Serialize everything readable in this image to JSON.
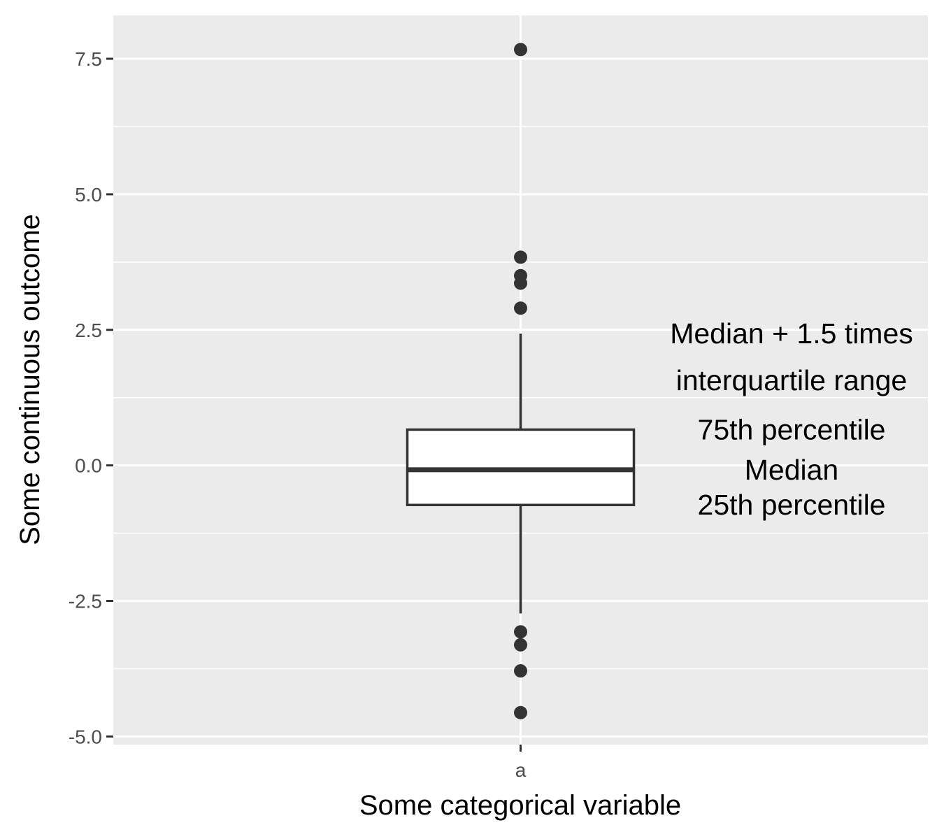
{
  "chart_data": {
    "type": "boxplot",
    "xlabel": "Some categorical variable",
    "ylabel": "Some continuous outcome",
    "categories": [
      "a"
    ],
    "ylim": [
      -5.15,
      8.3
    ],
    "y_ticks": [
      -5.0,
      -2.5,
      0.0,
      2.5,
      5.0,
      7.5
    ],
    "y_tick_labels": [
      "-5.0",
      "-2.5",
      "0.0",
      "2.5",
      "5.0",
      "7.5"
    ],
    "y_minor_gridlines": [
      -3.75,
      -1.25,
      1.25,
      3.75,
      6.25
    ],
    "grid": true,
    "box": {
      "category": "a",
      "q1": -0.73,
      "median": -0.08,
      "q3": 0.66,
      "whisker_low": -2.73,
      "whisker_high": 2.43
    },
    "outliers": [
      7.67,
      3.84,
      3.5,
      3.36,
      2.9,
      -3.07,
      -3.31,
      -3.79,
      -4.56
    ],
    "annotations": [
      {
        "text": "Median + 1.5 times",
        "y": 2.43
      },
      {
        "text": "interquartile range",
        "y": 1.57
      },
      {
        "text": "75th percentile",
        "y": 0.66
      },
      {
        "text": "Median",
        "y": -0.08
      },
      {
        "text": "25th percentile",
        "y": -0.73
      }
    ],
    "colors": {
      "panel_background": "#ebebeb",
      "grid": "#ffffff",
      "box_fill": "#ffffff",
      "box_line": "#333333",
      "outlier": "#333333"
    }
  }
}
